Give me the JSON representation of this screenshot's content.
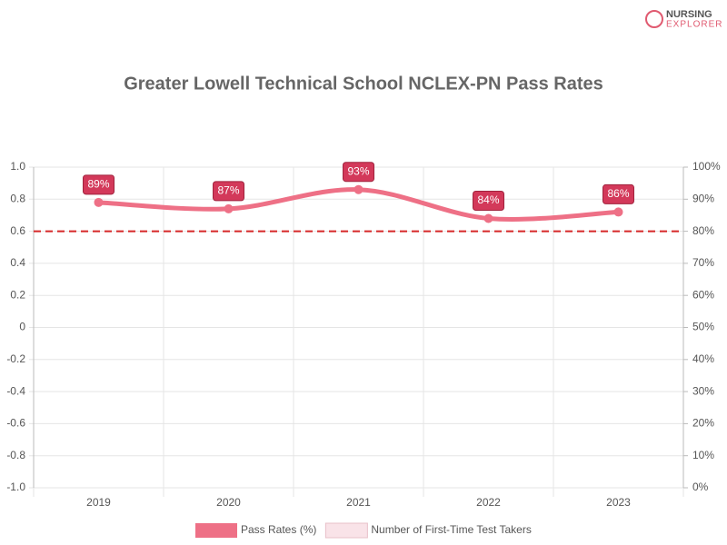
{
  "chart_data": {
    "type": "line",
    "title": "Greater Lowell Technical School NCLEX-PN Pass Rates",
    "logo": [
      "NURSING",
      "EXPLORER"
    ],
    "categories": [
      "2019",
      "2020",
      "2021",
      "2022",
      "2023"
    ],
    "series": [
      {
        "name": "Pass Rates (%)",
        "color": "#ee7086",
        "axis": "y2",
        "values": [
          89,
          87,
          93,
          84,
          86
        ],
        "value_labels": [
          "89%",
          "87%",
          "93%",
          "84%",
          "86%"
        ]
      },
      {
        "name": "Number of First-Time Test Takers",
        "color": "#f9e3e8",
        "values": [
          null,
          null,
          null,
          null,
          null
        ]
      }
    ],
    "ylim": [
      -1,
      1
    ],
    "yticks": [
      {
        "value": 1,
        "label": "1.0"
      },
      0.8,
      0.6,
      0.4,
      0.2,
      0,
      -0.2,
      -0.4,
      -0.6,
      -0.8,
      {
        "value": -1,
        "label": "-1.0"
      }
    ],
    "y2lim": [
      0,
      100
    ],
    "y2ticks": [
      {
        "value": 100,
        "label": "100%"
      },
      {
        "value": 90,
        "label": "90%"
      },
      {
        "value": 80,
        "label": "80%"
      },
      {
        "value": 70,
        "label": "70%"
      },
      {
        "value": 60,
        "label": "60%"
      },
      {
        "value": 50,
        "label": "50%"
      },
      {
        "value": 40,
        "label": "40%"
      },
      {
        "value": 30,
        "label": "30%"
      },
      {
        "value": 20,
        "label": "20%"
      },
      {
        "value": 10,
        "label": "10%"
      },
      {
        "value": 0,
        "label": "0%"
      }
    ],
    "threshold": {
      "value": 80,
      "axis": "y2",
      "color": "#d62728"
    },
    "label_color": "#d3395a",
    "grid": true
  }
}
